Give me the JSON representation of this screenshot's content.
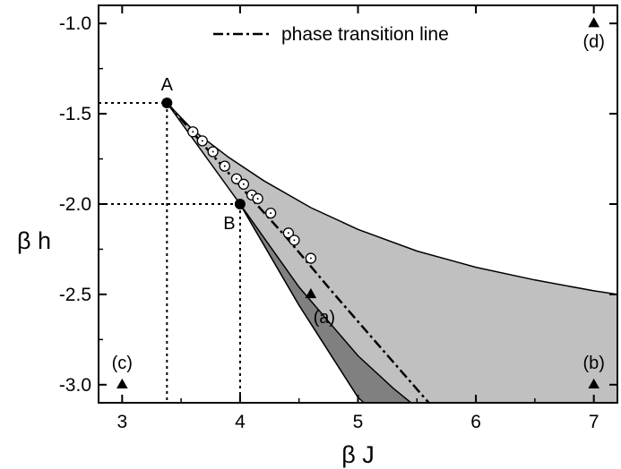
{
  "chart_data": {
    "type": "scatter",
    "xlabel": "β J",
    "ylabel": "β h",
    "xlim": [
      2.8,
      7.2
    ],
    "ylim": [
      -3.1,
      -0.9
    ],
    "x_ticks": [
      3,
      4,
      5,
      6,
      7
    ],
    "x_tick_labels": [
      "3",
      "4",
      "5",
      "6",
      "7"
    ],
    "y_ticks": [
      -1.0,
      -1.5,
      -2.0,
      -2.5,
      -3.0
    ],
    "y_tick_labels": [
      "-1.0",
      "-1.5",
      "-2.0",
      "-2.5",
      "-3.0"
    ],
    "legend": {
      "label": "phase transition line",
      "placement": "top-center"
    },
    "colors": {
      "light_region": "#c0c0c0",
      "dark_region": "#808080",
      "marker": "#000000",
      "open_marker_fill": "#ffffff"
    },
    "region_light": {
      "upper_boundary": [
        [
          3.38,
          -1.44
        ],
        [
          3.6,
          -1.59
        ],
        [
          3.9,
          -1.74
        ],
        [
          4.2,
          -1.87
        ],
        [
          4.6,
          -2.02
        ],
        [
          5.0,
          -2.14
        ],
        [
          5.5,
          -2.26
        ],
        [
          6.0,
          -2.35
        ],
        [
          6.5,
          -2.42
        ],
        [
          7.0,
          -2.48
        ],
        [
          7.2,
          -2.5
        ]
      ],
      "lower_boundary": [
        [
          3.38,
          -1.44
        ],
        [
          4.0,
          -2.0
        ],
        [
          4.5,
          -2.56
        ],
        [
          5.0,
          -3.07
        ],
        [
          5.05,
          -3.1
        ]
      ],
      "bottom": -3.1,
      "right": 7.2
    },
    "region_dark": {
      "left_boundary": [
        [
          4.0,
          -2.0
        ],
        [
          4.5,
          -2.56
        ],
        [
          5.0,
          -3.07
        ],
        [
          5.05,
          -3.1
        ]
      ],
      "right_boundary": [
        [
          4.0,
          -2.0
        ],
        [
          4.5,
          -2.46
        ],
        [
          5.0,
          -2.84
        ],
        [
          5.3,
          -3.02
        ],
        [
          5.45,
          -3.1
        ]
      ]
    },
    "phase_transition_line": [
      [
        3.38,
        -1.44
      ],
      [
        3.7,
        -1.68
      ],
      [
        4.0,
        -1.9
      ],
      [
        4.4,
        -2.19
      ],
      [
        4.8,
        -2.5
      ],
      [
        5.2,
        -2.8
      ],
      [
        5.6,
        -3.1
      ]
    ],
    "simulation_points": [
      [
        3.6,
        -1.6
      ],
      [
        3.68,
        -1.65
      ],
      [
        3.77,
        -1.71
      ],
      [
        3.87,
        -1.79
      ],
      [
        3.97,
        -1.86
      ],
      [
        4.03,
        -1.89
      ],
      [
        4.1,
        -1.95
      ],
      [
        4.15,
        -1.97
      ],
      [
        4.26,
        -2.05
      ],
      [
        4.41,
        -2.16
      ],
      [
        4.46,
        -2.2
      ],
      [
        4.6,
        -2.3
      ]
    ],
    "special_points": [
      {
        "label": "A",
        "x": 3.38,
        "y": -1.44
      },
      {
        "label": "B",
        "x": 4.0,
        "y": -2.0
      }
    ],
    "marked_points": [
      {
        "label": "(a)",
        "x": 4.6,
        "y": -2.5
      },
      {
        "label": "(b)",
        "x": 7.0,
        "y": -3.0
      },
      {
        "label": "(c)",
        "x": 3.0,
        "y": -3.0
      },
      {
        "label": "(d)",
        "x": 7.0,
        "y": -1.0
      }
    ]
  }
}
